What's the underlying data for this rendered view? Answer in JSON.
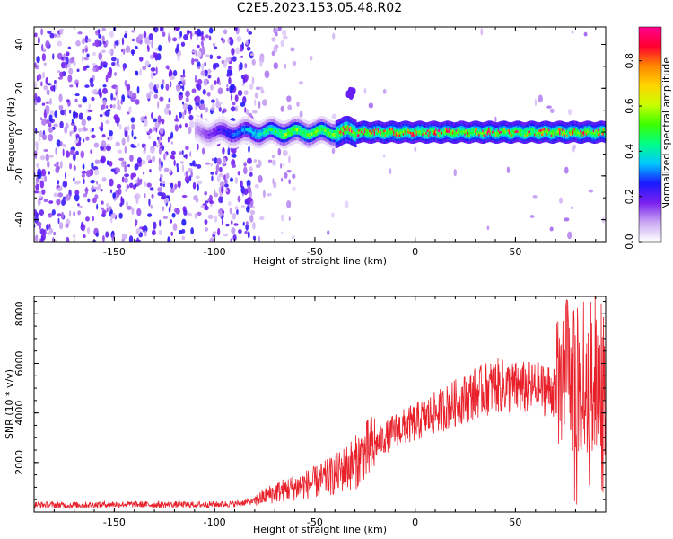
{
  "title": "C2E5.2023.153.05.48.R02",
  "chart_data": [
    {
      "type": "heatmap",
      "xlabel": "Height of straight line (km)",
      "ylabel": "Frequency (Hz)",
      "xlim": [
        -190,
        95
      ],
      "ylim": [
        -50,
        48
      ],
      "x_ticks": [
        -150,
        -100,
        -50,
        0,
        50
      ],
      "y_ticks": [
        -40,
        -20,
        0,
        20,
        40
      ],
      "colorbar": {
        "label": "Normalized spectral amplitude",
        "range": [
          0,
          0.95
        ],
        "ticks": [
          0.0,
          0.2,
          0.4,
          0.6,
          0.8
        ],
        "colors": [
          "#ffffff",
          "#c9a6f2",
          "#7a1ff0",
          "#1a1aff",
          "#00c8ff",
          "#00ff88",
          "#3cff00",
          "#c8ff00",
          "#ffd400",
          "#ff8800",
          "#ff0030",
          "#ff0090"
        ]
      },
      "features": [
        {
          "name": "noise",
          "x_range": [
            -190,
            -75
          ],
          "y_range": [
            -50,
            48
          ],
          "amplitude": [
            0.05,
            0.25
          ]
        },
        {
          "name": "carrier",
          "x_range": [
            -110,
            95
          ],
          "center_hz": 0,
          "peak_amplitude": 0.95
        },
        {
          "name": "blob",
          "x": -32,
          "y": 18,
          "amplitude": 0.2
        }
      ],
      "grid": false
    },
    {
      "type": "line",
      "xlabel": "Height of straight line (km)",
      "ylabel": "SNR (10 * v/v)",
      "xlim": [
        -190,
        95
      ],
      "ylim": [
        0,
        8700
      ],
      "x_ticks": [
        -150,
        -100,
        -50,
        0,
        50
      ],
      "y_ticks": [
        2000,
        4000,
        6000,
        8000
      ],
      "series": [
        {
          "color": "#e8202a",
          "x": [
            -190,
            -170,
            -150,
            -130,
            -110,
            -100,
            -90,
            -80,
            -70,
            -60,
            -50,
            -40,
            -30,
            -20,
            -10,
            0,
            10,
            20,
            30,
            40,
            50,
            60,
            70,
            75,
            80,
            85,
            90,
            95
          ],
          "values": [
            300,
            280,
            320,
            300,
            300,
            310,
            330,
            450,
            800,
            1000,
            1200,
            1500,
            2000,
            2700,
            3300,
            3600,
            4000,
            4400,
            4800,
            5100,
            5000,
            5000,
            4900,
            5500,
            5200,
            4500,
            5500,
            5000
          ]
        }
      ],
      "grid": false
    }
  ]
}
